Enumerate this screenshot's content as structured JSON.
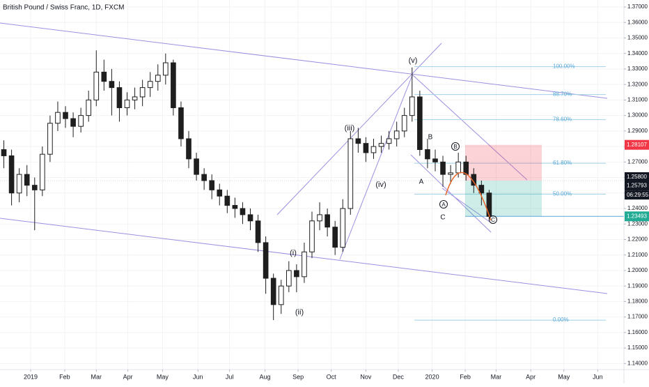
{
  "chart_data": {
    "type": "candlestick",
    "title": "British Pound / Swiss Franc, 1D, FXCM",
    "x": [
      0.5,
      1.5,
      2.5,
      3.5,
      4.5,
      5.5,
      6.5,
      7.5,
      8.5,
      9.5,
      10.5,
      11.5,
      12.5,
      13.5,
      14.5,
      15.5,
      16.5,
      17.5,
      18.5,
      19.5,
      20.5,
      21.5,
      22.5,
      23.5,
      24.5,
      25.5,
      26.5,
      27.5,
      28.5,
      29.5,
      30.5,
      31.5,
      32.5,
      33.5,
      34.5,
      35.5,
      36.5,
      37.5,
      38.5,
      39.5,
      40.5,
      41.5,
      42.5,
      43.5,
      44.5,
      45.5,
      46.5,
      47.5,
      48.5,
      49.5,
      50.5,
      51.5,
      52.5,
      53.5,
      54.5,
      55.5,
      56.5,
      57.5,
      58.5,
      59.5,
      60.5,
      61.5,
      62.5,
      63.5
    ],
    "open": [
      1.278,
      1.274,
      1.25,
      1.262,
      1.255,
      1.252,
      1.275,
      1.295,
      1.302,
      1.298,
      1.293,
      1.3,
      1.31,
      1.328,
      1.322,
      1.318,
      1.305,
      1.31,
      1.312,
      1.318,
      1.322,
      1.326,
      1.334,
      1.305,
      1.285,
      1.272,
      1.262,
      1.258,
      1.252,
      1.248,
      1.242,
      1.24,
      1.236,
      1.232,
      1.218,
      1.195,
      1.178,
      1.19,
      1.2,
      1.196,
      1.212,
      1.232,
      1.236,
      1.228,
      1.215,
      1.24,
      1.285,
      1.282,
      1.276,
      1.28,
      1.282,
      1.285,
      1.29,
      1.3,
      1.312,
      1.278,
      1.272,
      1.27,
      1.262,
      1.263,
      1.27,
      1.262,
      1.255,
      1.25
    ],
    "high": [
      1.284,
      1.278,
      1.266,
      1.268,
      1.26,
      1.28,
      1.3,
      1.309,
      1.306,
      1.302,
      1.305,
      1.316,
      1.342,
      1.336,
      1.33,
      1.322,
      1.315,
      1.318,
      1.323,
      1.328,
      1.333,
      1.34,
      1.336,
      1.309,
      1.29,
      1.276,
      1.266,
      1.262,
      1.256,
      1.252,
      1.247,
      1.244,
      1.24,
      1.236,
      1.222,
      1.198,
      1.194,
      1.206,
      1.204,
      1.218,
      1.238,
      1.244,
      1.24,
      1.232,
      1.246,
      1.29,
      1.292,
      1.286,
      1.285,
      1.287,
      1.29,
      1.296,
      1.305,
      1.331,
      1.316,
      1.285,
      1.278,
      1.274,
      1.268,
      1.276,
      1.274,
      1.266,
      1.258,
      1.252
    ],
    "low": [
      1.266,
      1.242,
      1.244,
      1.248,
      1.226,
      1.248,
      1.27,
      1.29,
      1.292,
      1.286,
      1.289,
      1.296,
      1.306,
      1.316,
      1.3,
      1.296,
      1.3,
      1.304,
      1.306,
      1.312,
      1.316,
      1.32,
      1.3,
      1.28,
      1.266,
      1.258,
      1.252,
      1.246,
      1.242,
      1.237,
      1.234,
      1.23,
      1.226,
      1.212,
      1.185,
      1.168,
      1.172,
      1.186,
      1.186,
      1.192,
      1.208,
      1.226,
      1.222,
      1.21,
      1.212,
      1.236,
      1.276,
      1.27,
      1.272,
      1.276,
      1.278,
      1.28,
      1.286,
      1.296,
      1.274,
      1.266,
      1.264,
      1.254,
      1.256,
      1.26,
      1.258,
      1.25,
      1.242,
      1.232
    ],
    "close": [
      1.274,
      1.25,
      1.262,
      1.255,
      1.252,
      1.275,
      1.295,
      1.302,
      1.298,
      1.293,
      1.3,
      1.31,
      1.328,
      1.322,
      1.318,
      1.305,
      1.31,
      1.312,
      1.318,
      1.322,
      1.326,
      1.334,
      1.305,
      1.285,
      1.272,
      1.262,
      1.258,
      1.252,
      1.248,
      1.242,
      1.24,
      1.236,
      1.232,
      1.218,
      1.195,
      1.178,
      1.19,
      1.2,
      1.196,
      1.212,
      1.232,
      1.236,
      1.228,
      1.215,
      1.24,
      1.285,
      1.282,
      1.276,
      1.28,
      1.282,
      1.285,
      1.29,
      1.3,
      1.312,
      1.278,
      1.272,
      1.27,
      1.262,
      1.263,
      1.27,
      1.262,
      1.255,
      1.25,
      1.23493
    ],
    "up_color": "#ffffff",
    "down_color": "#1e1e1e",
    "xlim": [
      0,
      81
    ],
    "xticks": [
      {
        "value": 3.98,
        "label": "2019"
      },
      {
        "value": 8.4,
        "label": "Feb"
      },
      {
        "value": 12.5,
        "label": "Mar"
      },
      {
        "value": 16.6,
        "label": "Apr"
      },
      {
        "value": 21.1,
        "label": "May"
      },
      {
        "value": 25.7,
        "label": "Jun"
      },
      {
        "value": 29.8,
        "label": "Jul"
      },
      {
        "value": 34.4,
        "label": "Aug"
      },
      {
        "value": 38.7,
        "label": "Sep"
      },
      {
        "value": 43.0,
        "label": "Oct"
      },
      {
        "value": 47.5,
        "label": "Nov"
      },
      {
        "value": 51.7,
        "label": "Dec"
      },
      {
        "value": 56.1,
        "label": "2020"
      },
      {
        "value": 60.4,
        "label": "Feb"
      },
      {
        "value": 64.4,
        "label": "Mar"
      },
      {
        "value": 68.9,
        "label": "Apr"
      },
      {
        "value": 73.2,
        "label": "May"
      },
      {
        "value": 77.6,
        "label": "Jun"
      }
    ],
    "ylim": [
      1.1361,
      1.3745
    ],
    "yticks": [
      {
        "value": 1.37,
        "label": "1.37000"
      },
      {
        "value": 1.36,
        "label": "1.36000"
      },
      {
        "value": 1.35,
        "label": "1.35000"
      },
      {
        "value": 1.34,
        "label": "1.34000"
      },
      {
        "value": 1.33,
        "label": "1.33000"
      },
      {
        "value": 1.32,
        "label": "1.32000"
      },
      {
        "value": 1.31,
        "label": "1.31000"
      },
      {
        "value": 1.3,
        "label": "1.30000"
      },
      {
        "value": 1.29,
        "label": "1.29000"
      },
      {
        "value": 1.28,
        "label": "1.28000"
      },
      {
        "value": 1.27,
        "label": "1.27000"
      },
      {
        "value": 1.26,
        "label": "1.26000"
      },
      {
        "value": 1.25,
        "label": "1.25000"
      },
      {
        "value": 1.24,
        "label": "1.24000"
      },
      {
        "value": 1.23,
        "label": "1.23000"
      },
      {
        "value": 1.22,
        "label": "1.22000"
      },
      {
        "value": 1.21,
        "label": "1.21000"
      },
      {
        "value": 1.2,
        "label": "1.20000"
      },
      {
        "value": 1.19,
        "label": "1.19000"
      },
      {
        "value": 1.18,
        "label": "1.18000"
      },
      {
        "value": 1.17,
        "label": "1.17000"
      },
      {
        "value": 1.16,
        "label": "1.16000"
      },
      {
        "value": 1.15,
        "label": "1.15000"
      },
      {
        "value": 1.14,
        "label": "1.14000"
      }
    ],
    "price_labels": [
      {
        "value": 1.28107,
        "label": "1.28107",
        "color": "#f23645"
      },
      {
        "value": 1.258,
        "label": "1.25800",
        "color": "#131722"
      },
      {
        "value": 1.25793,
        "label": "1.25793",
        "color": "#131722"
      },
      {
        "value": 1.23493,
        "label": "1.23493",
        "color": "#22ab94"
      }
    ],
    "countdown": "06:29:55",
    "fib_levels": [
      {
        "value": 1.3315,
        "label": "100.00%"
      },
      {
        "value": 1.3135,
        "label": "88.70%"
      },
      {
        "value": 1.2973,
        "label": "78.60%"
      },
      {
        "value": 1.2692,
        "label": "61.80%"
      },
      {
        "value": 1.2493,
        "label": "50.00%"
      },
      {
        "value": 1.168,
        "label": "0.00%"
      }
    ],
    "annotations": [
      "(v)",
      "(iii)",
      "(iv)",
      "(i)",
      "(ii)",
      "B",
      "A",
      "C",
      "A",
      "B",
      "C"
    ]
  }
}
